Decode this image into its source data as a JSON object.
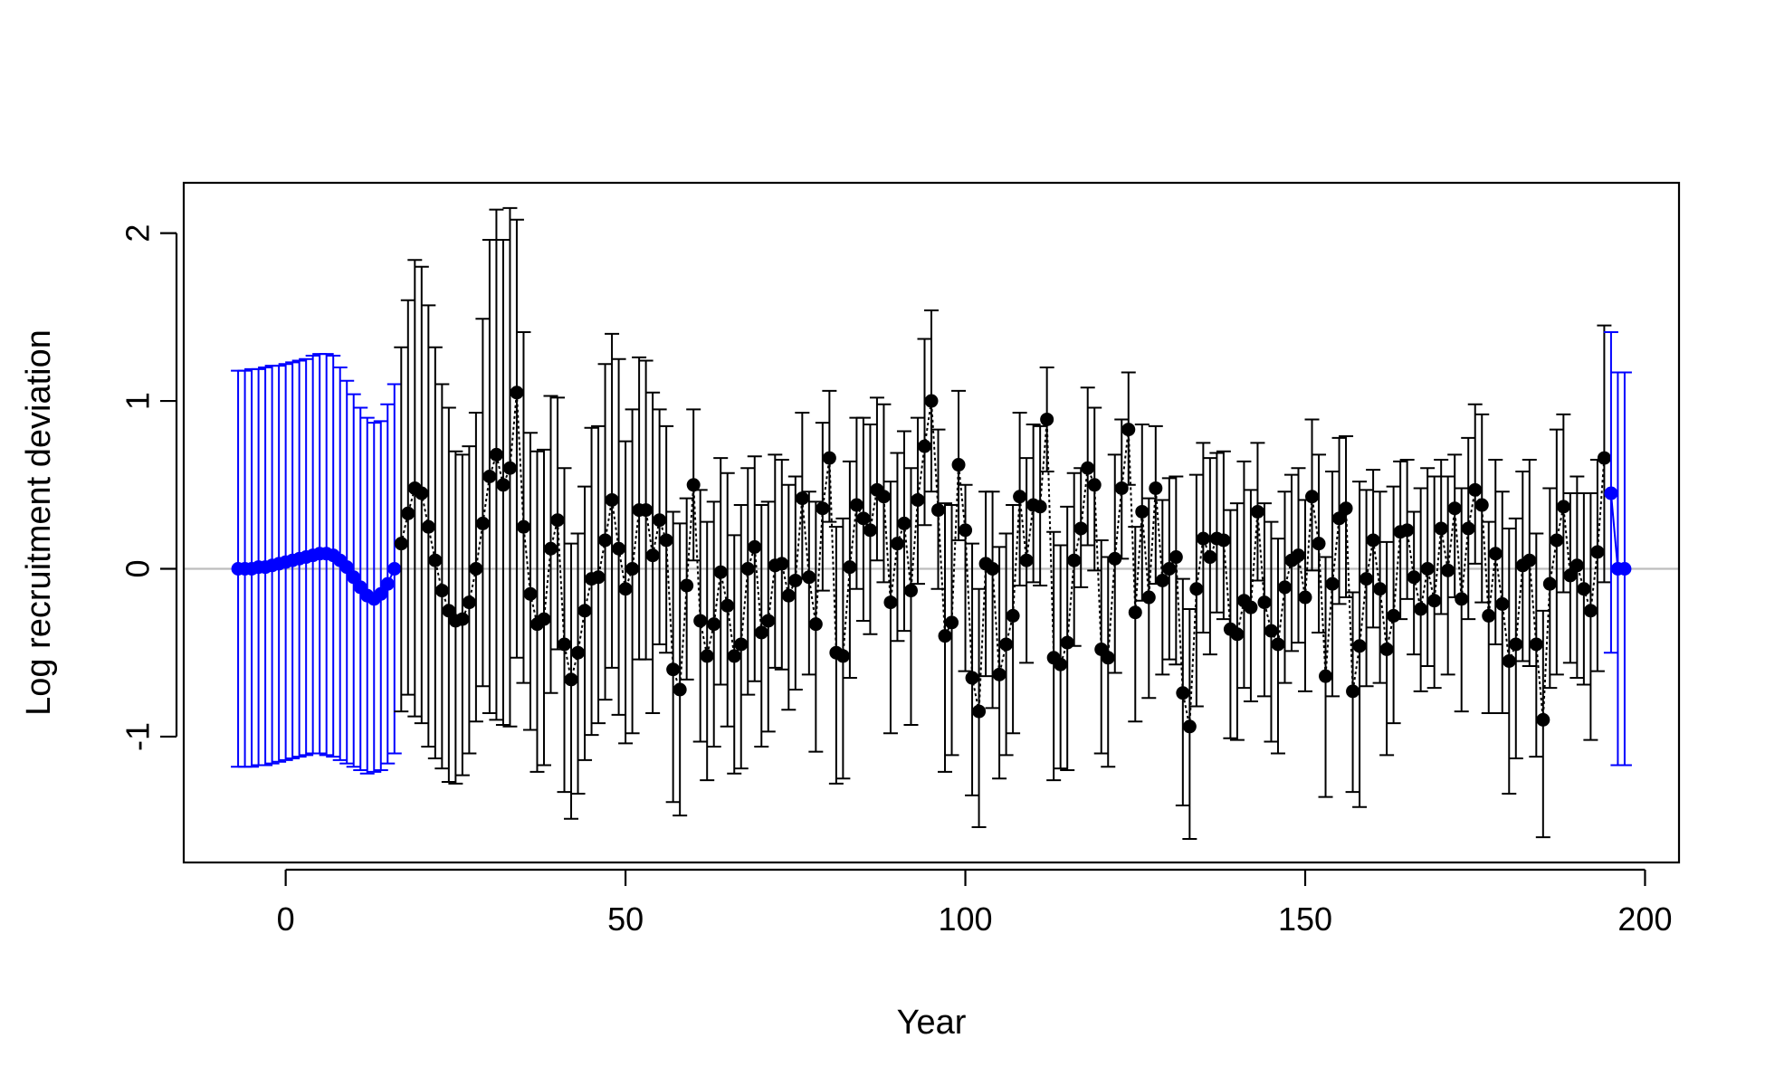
{
  "chart_data": {
    "type": "scatter",
    "title": "",
    "xlabel": "Year",
    "ylabel": "Log recruitment deviation",
    "xlim": [
      -15,
      205
    ],
    "ylim": [
      -1.75,
      2.3
    ],
    "x_ticks": [
      0,
      50,
      100,
      150,
      200
    ],
    "y_ticks": [
      -1,
      0,
      1,
      2
    ],
    "x_tick_labels": [
      "0",
      "50",
      "100",
      "150",
      "200"
    ],
    "y_tick_labels": [
      "-1",
      "0",
      "1",
      "2"
    ],
    "grid": false,
    "legend": "none",
    "reference_line": {
      "y": 0,
      "color": "#bdbdbd"
    },
    "colors": {
      "early_forecast": "#0000ff",
      "main": "#000000"
    },
    "series": [
      {
        "color": "#0000ff",
        "style": "points-with-errorbars",
        "x": [
          -7,
          -6,
          -5,
          -4,
          -3,
          -2,
          -1,
          0,
          1,
          2,
          3,
          4,
          5,
          6,
          7,
          8,
          9,
          10,
          11,
          12,
          13,
          14,
          15,
          16
        ],
        "y": [
          0.0,
          0.0,
          0.0,
          0.01,
          0.01,
          0.02,
          0.03,
          0.04,
          0.05,
          0.06,
          0.07,
          0.08,
          0.09,
          0.09,
          0.08,
          0.05,
          0.01,
          -0.05,
          -0.11,
          -0.16,
          -0.18,
          -0.15,
          -0.09,
          0.0
        ],
        "lower": [
          -1.18,
          -1.18,
          -1.18,
          -1.17,
          -1.17,
          -1.16,
          -1.15,
          -1.14,
          -1.13,
          -1.12,
          -1.11,
          -1.1,
          -1.1,
          -1.11,
          -1.12,
          -1.14,
          -1.16,
          -1.18,
          -1.2,
          -1.22,
          -1.21,
          -1.2,
          -1.16,
          -1.1
        ],
        "upper": [
          1.18,
          1.18,
          1.19,
          1.19,
          1.2,
          1.21,
          1.21,
          1.22,
          1.23,
          1.24,
          1.25,
          1.27,
          1.28,
          1.28,
          1.27,
          1.2,
          1.12,
          1.04,
          0.96,
          0.9,
          0.87,
          0.88,
          0.98,
          1.1
        ]
      },
      {
        "color": "#000000",
        "style": "points-with-errorbars-dotted-line",
        "x": [
          17,
          18,
          19,
          20,
          21,
          22,
          23,
          24,
          25,
          26,
          27,
          28,
          29,
          30,
          31,
          32,
          33,
          34,
          35,
          36,
          37,
          38,
          39,
          40,
          41,
          42,
          43,
          44,
          45,
          46,
          47,
          48,
          49,
          50,
          51,
          52,
          53,
          54,
          55,
          56,
          57,
          58,
          59,
          60,
          61,
          62,
          63,
          64,
          65,
          66,
          67,
          68,
          69,
          70,
          71,
          72,
          73,
          74,
          75,
          76,
          77,
          78,
          79,
          80,
          81,
          82,
          83,
          84,
          85,
          86,
          87,
          88,
          89,
          90,
          91,
          92,
          93,
          94,
          95,
          96,
          97,
          98,
          99,
          100,
          101,
          102,
          103,
          104,
          105,
          106,
          107,
          108,
          109,
          110,
          111,
          112,
          113,
          114,
          115,
          116,
          117,
          118,
          119,
          120,
          121,
          122,
          123,
          124,
          125,
          126,
          127,
          128,
          129,
          130,
          131,
          132,
          133,
          134,
          135,
          136,
          137,
          138,
          139,
          140,
          141,
          142,
          143,
          144,
          145,
          146,
          147,
          148,
          149,
          150,
          151,
          152,
          153,
          154,
          155,
          156,
          157,
          158,
          159,
          160,
          161,
          162,
          163,
          164,
          165,
          166,
          167,
          168,
          169,
          170,
          171,
          172,
          173,
          174,
          175,
          176,
          177,
          178,
          179,
          180,
          181,
          182,
          183,
          184,
          185,
          186,
          187,
          188,
          189,
          190,
          191,
          192,
          193,
          194
        ],
        "y": [
          0.15,
          0.33,
          0.48,
          0.45,
          0.25,
          0.05,
          -0.13,
          -0.25,
          -0.31,
          -0.3,
          -0.2,
          0.0,
          0.27,
          0.55,
          0.68,
          0.5,
          0.6,
          1.05,
          0.25,
          -0.15,
          -0.33,
          -0.3,
          0.12,
          0.29,
          -0.45,
          -0.66,
          -0.5,
          -0.25,
          -0.06,
          -0.05,
          0.17,
          0.41,
          0.12,
          -0.12,
          0.0,
          0.35,
          0.35,
          0.08,
          0.29,
          0.17,
          -0.6,
          -0.72,
          -0.1,
          0.5,
          -0.31,
          -0.52,
          -0.33,
          -0.02,
          -0.22,
          -0.52,
          -0.45,
          0.0,
          0.13,
          -0.38,
          -0.31,
          0.02,
          0.03,
          -0.16,
          -0.07,
          0.42,
          -0.05,
          -0.33,
          0.36,
          0.66,
          -0.5,
          -0.52,
          0.01,
          0.38,
          0.3,
          0.23,
          0.47,
          0.43,
          -0.2,
          0.15,
          0.27,
          -0.13,
          0.41,
          0.73,
          1.0,
          0.35,
          -0.4,
          -0.32,
          0.62,
          0.23,
          -0.65,
          -0.85,
          0.03,
          0.0,
          -0.63,
          -0.45,
          -0.28,
          0.43,
          0.05,
          0.38,
          0.37,
          0.89,
          -0.53,
          -0.57,
          -0.44,
          0.05,
          0.24,
          0.6,
          0.5,
          -0.48,
          -0.53,
          0.06,
          0.48,
          0.83,
          -0.26,
          0.34,
          -0.17,
          0.48,
          -0.07,
          0.0,
          0.07,
          -0.74,
          -0.94,
          -0.12,
          0.18,
          0.07,
          0.18,
          0.17,
          -0.36,
          -0.39,
          -0.19,
          -0.23,
          0.34,
          -0.2,
          -0.37,
          -0.45,
          -0.11,
          0.05,
          0.08,
          -0.17,
          0.43,
          0.15,
          -0.64,
          -0.09,
          0.3,
          0.36,
          -0.73,
          -0.46,
          -0.06,
          0.17,
          -0.12,
          -0.48,
          -0.28,
          0.22,
          0.23,
          -0.05,
          -0.24,
          0.0,
          -0.19,
          0.24,
          -0.01,
          0.36,
          -0.18,
          0.24,
          0.47,
          0.38,
          -0.28,
          0.09,
          -0.21,
          -0.55,
          -0.45,
          0.02,
          0.05,
          -0.45,
          -0.9,
          -0.09,
          0.17,
          0.37,
          -0.04,
          0.02,
          -0.12,
          -0.25,
          0.1,
          0.66
        ],
        "lower": [
          -0.85,
          -0.75,
          -0.88,
          -0.92,
          -1.06,
          -1.13,
          -1.19,
          -1.27,
          -1.28,
          -1.23,
          -1.1,
          -0.91,
          -0.7,
          -0.86,
          -0.9,
          -0.93,
          -0.94,
          -0.53,
          -0.68,
          -0.96,
          -1.21,
          -1.17,
          -0.74,
          -0.48,
          -1.33,
          -1.49,
          -1.34,
          -1.14,
          -0.99,
          -0.92,
          -0.78,
          -0.59,
          -0.87,
          -1.04,
          -0.98,
          -0.54,
          -0.54,
          -0.86,
          -0.45,
          -0.5,
          -1.39,
          -1.47,
          -0.66,
          0.05,
          -1.03,
          -1.26,
          -1.06,
          -0.69,
          -0.94,
          -1.22,
          -1.19,
          -0.75,
          -0.67,
          -1.06,
          -0.97,
          -0.59,
          -0.6,
          -0.84,
          -0.72,
          -0.06,
          -0.63,
          -1.09,
          -0.13,
          0.28,
          -1.28,
          -1.25,
          -0.65,
          -0.12,
          -0.31,
          -0.39,
          0.05,
          -0.08,
          -0.98,
          -0.43,
          -0.37,
          -0.93,
          -0.09,
          0.26,
          0.46,
          -0.12,
          -1.21,
          -1.11,
          0.17,
          -0.61,
          -1.35,
          -1.54,
          -0.64,
          -0.83,
          -1.25,
          -1.11,
          -0.98,
          -0.1,
          -0.56,
          -0.08,
          -0.1,
          0.58,
          -1.26,
          -1.19,
          -1.2,
          -0.46,
          -0.11,
          0.14,
          -0.01,
          -1.1,
          -1.18,
          -0.62,
          0.06,
          0.5,
          -0.91,
          -0.19,
          -0.77,
          -0.09,
          -0.63,
          -0.54,
          -0.57,
          -1.41,
          -1.61,
          -0.82,
          -0.38,
          -0.51,
          -0.26,
          -0.3,
          -1.01,
          -1.02,
          -0.71,
          -0.79,
          -0.07,
          -0.76,
          -1.03,
          -1.1,
          -0.68,
          -0.49,
          -0.44,
          -0.73,
          -0.01,
          -0.38,
          -1.36,
          -0.76,
          -0.21,
          -0.17,
          -1.33,
          -1.42,
          -0.7,
          -0.35,
          -0.68,
          -1.11,
          -0.92,
          -0.3,
          -0.18,
          -0.51,
          -0.73,
          -0.58,
          -0.71,
          -0.27,
          -0.63,
          -0.17,
          -0.85,
          -0.3,
          0.03,
          -0.2,
          -0.86,
          -0.45,
          -0.86,
          -1.34,
          -1.13,
          -0.55,
          -0.58,
          -1.12,
          -1.6,
          -0.71,
          -0.63,
          -0.14,
          -0.56,
          -0.65,
          -0.69,
          -1.02,
          -0.61,
          -0.08
        ],
        "upper": [
          1.32,
          1.6,
          1.84,
          1.8,
          1.57,
          1.32,
          1.1,
          0.96,
          0.7,
          0.68,
          0.73,
          0.93,
          1.49,
          1.96,
          2.14,
          1.96,
          2.15,
          2.08,
          1.41,
          0.81,
          0.7,
          0.71,
          1.03,
          1.02,
          0.6,
          0.15,
          0.21,
          0.49,
          0.84,
          0.85,
          1.22,
          1.4,
          1.25,
          0.76,
          0.95,
          1.26,
          1.24,
          1.05,
          0.95,
          0.85,
          0.34,
          0.27,
          0.42,
          0.95,
          0.47,
          0.28,
          0.4,
          0.66,
          0.57,
          0.2,
          0.38,
          0.6,
          0.67,
          0.38,
          0.4,
          0.68,
          0.65,
          0.5,
          0.55,
          0.93,
          0.46,
          0.4,
          0.87,
          1.06,
          0.25,
          0.3,
          0.64,
          0.9,
          0.9,
          0.86,
          1.02,
          0.98,
          0.52,
          0.69,
          0.82,
          0.6,
          0.9,
          1.37,
          1.54,
          0.83,
          0.39,
          0.38,
          1.06,
          0.5,
          0.15,
          -0.12,
          0.46,
          0.46,
          0.13,
          0.21,
          0.38,
          0.93,
          0.66,
          0.86,
          0.85,
          1.2,
          0.22,
          0.14,
          0.37,
          0.57,
          0.6,
          1.08,
          0.96,
          0.17,
          0.07,
          0.68,
          0.89,
          1.17,
          0.25,
          0.86,
          0.42,
          0.85,
          0.41,
          0.54,
          0.55,
          -0.06,
          -0.24,
          0.56,
          0.75,
          0.66,
          0.69,
          0.7,
          0.35,
          0.39,
          0.64,
          0.47,
          0.75,
          0.39,
          0.28,
          0.18,
          0.46,
          0.56,
          0.6,
          0.41,
          0.89,
          0.68,
          0.07,
          0.58,
          0.78,
          0.79,
          -0.14,
          0.52,
          0.47,
          0.59,
          0.46,
          0.16,
          0.49,
          0.64,
          0.65,
          0.34,
          0.48,
          0.6,
          0.55,
          0.65,
          0.55,
          0.68,
          0.48,
          0.78,
          0.98,
          0.92,
          0.28,
          0.65,
          0.46,
          0.24,
          0.3,
          0.58,
          0.65,
          0.21,
          -0.25,
          0.48,
          0.83,
          0.92,
          0.45,
          0.55,
          0.45,
          0.45,
          0.65,
          1.45
        ]
      },
      {
        "color": "#0000ff",
        "style": "points-with-errorbars",
        "x": [
          195,
          196,
          197
        ],
        "y": [
          0.45,
          0.0,
          0.0
        ],
        "lower": [
          -0.5,
          -1.17,
          -1.17
        ],
        "upper": [
          1.41,
          1.17,
          1.17
        ]
      }
    ]
  }
}
